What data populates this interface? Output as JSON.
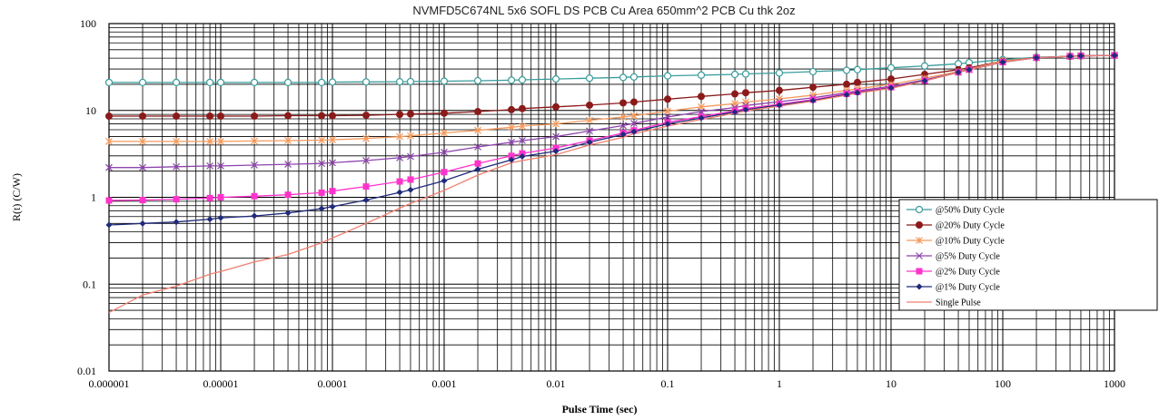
{
  "chart_data": {
    "type": "line",
    "title": "NVMFD5C674NL  5x6 SOFL DS   PCB Cu Area 650mm^2  PCB Cu thk  2oz",
    "xlabel": "Pulse Time (sec)",
    "ylabel": "R(t) (C/W)",
    "xscale": "log",
    "yscale": "log",
    "xlim": [
      1e-06,
      1000
    ],
    "ylim": [
      0.01,
      100
    ],
    "x_tick_labels": [
      "0.000001",
      "0.00001",
      "0.0001",
      "0.001",
      "0.01",
      "0.1",
      "1",
      "10",
      "100",
      "1000"
    ],
    "y_tick_labels": [
      "0.01",
      "0.1",
      "1",
      "10",
      "100"
    ],
    "grid": true,
    "legend_position": "right",
    "x": [
      1e-06,
      2e-06,
      4e-06,
      8e-06,
      1e-05,
      2e-05,
      4e-05,
      8e-05,
      0.0001,
      0.0002,
      0.0004,
      0.0005,
      0.001,
      0.002,
      0.004,
      0.005,
      0.01,
      0.02,
      0.04,
      0.05,
      0.1,
      0.2,
      0.4,
      0.5,
      1,
      2,
      4,
      5,
      10,
      20,
      40,
      50,
      100,
      200,
      400,
      500,
      1000
    ],
    "series": [
      {
        "name": "@50% Duty Cycle",
        "color": "#3a9c9c",
        "marker": "circle-open",
        "values": [
          21,
          21,
          21,
          21,
          21,
          21,
          21,
          21,
          21.2,
          21.3,
          21.4,
          21.5,
          21.7,
          22,
          22.3,
          22.5,
          23,
          23.5,
          24,
          24.3,
          25,
          25.5,
          26,
          26.3,
          27,
          28,
          29,
          29.5,
          31,
          32.5,
          34.5,
          35.5,
          38.5,
          41,
          42,
          42.5,
          43
        ]
      },
      {
        "name": "@20% Duty Cycle",
        "color": "#8b1a1a",
        "marker": "circle-filled",
        "values": [
          8.6,
          8.6,
          8.6,
          8.6,
          8.6,
          8.6,
          8.7,
          8.7,
          8.7,
          8.8,
          9,
          9.1,
          9.3,
          9.7,
          10.2,
          10.5,
          11,
          11.5,
          12.2,
          12.5,
          13.5,
          14.5,
          15.5,
          16,
          17,
          18.5,
          20,
          21,
          23,
          26,
          29.5,
          31,
          37,
          40.5,
          42,
          42.5,
          43
        ]
      },
      {
        "name": "@10% Duty Cycle",
        "color": "#f49a5c",
        "marker": "star",
        "values": [
          4.4,
          4.4,
          4.4,
          4.4,
          4.4,
          4.45,
          4.5,
          4.55,
          4.6,
          4.75,
          5,
          5.1,
          5.5,
          5.9,
          6.4,
          6.6,
          7,
          7.7,
          8.4,
          8.7,
          9.8,
          11,
          12,
          12.5,
          13.6,
          15,
          17,
          17.8,
          20,
          23.5,
          28,
          30,
          37,
          40.5,
          42,
          42.5,
          43
        ]
      },
      {
        "name": "@5% Duty Cycle",
        "color": "#8e44ad",
        "marker": "x",
        "values": [
          2.2,
          2.2,
          2.25,
          2.3,
          2.3,
          2.35,
          2.4,
          2.45,
          2.5,
          2.65,
          2.85,
          2.95,
          3.3,
          3.8,
          4.3,
          4.5,
          5,
          5.8,
          6.7,
          7.1,
          8.4,
          9.7,
          10.8,
          11.4,
          12.6,
          14,
          16,
          16.8,
          19,
          22.5,
          27.5,
          29.5,
          36,
          40.5,
          42,
          42.5,
          43
        ]
      },
      {
        "name": "@2% Duty Cycle",
        "color": "#ff33cc",
        "marker": "square",
        "values": [
          0.92,
          0.93,
          0.95,
          0.98,
          1,
          1.03,
          1.07,
          1.13,
          1.18,
          1.33,
          1.52,
          1.6,
          1.95,
          2.45,
          3,
          3.2,
          3.7,
          4.5,
          5.5,
          5.9,
          7.3,
          8.5,
          9.9,
          10.5,
          11.8,
          13.3,
          15.5,
          16.3,
          18.5,
          22,
          27.5,
          29.5,
          36,
          40.5,
          42,
          42.5,
          43
        ]
      },
      {
        "name": "@1% Duty Cycle",
        "color": "#1f2a7a",
        "marker": "diamond",
        "values": [
          0.48,
          0.5,
          0.52,
          0.56,
          0.58,
          0.61,
          0.66,
          0.74,
          0.78,
          0.93,
          1.14,
          1.22,
          1.55,
          2.1,
          2.7,
          2.95,
          3.4,
          4.3,
          5.3,
          5.7,
          7,
          8.2,
          9.6,
          10.2,
          11.5,
          13,
          15.2,
          16,
          18.2,
          22,
          27.5,
          29.5,
          36,
          40.5,
          42,
          42.5,
          43
        ]
      },
      {
        "name": "Single Pulse",
        "color": "#f08070",
        "marker": "none",
        "values": [
          0.047,
          0.075,
          0.095,
          0.13,
          0.14,
          0.18,
          0.22,
          0.3,
          0.34,
          0.5,
          0.75,
          0.85,
          1.2,
          1.8,
          2.5,
          2.65,
          3.1,
          4,
          4.9,
          5.4,
          6.6,
          7.9,
          9.3,
          9.9,
          11.2,
          12.8,
          15,
          15.8,
          18,
          21.8,
          27.5,
          29.5,
          36,
          40.5,
          42,
          42.5,
          43
        ]
      }
    ]
  }
}
